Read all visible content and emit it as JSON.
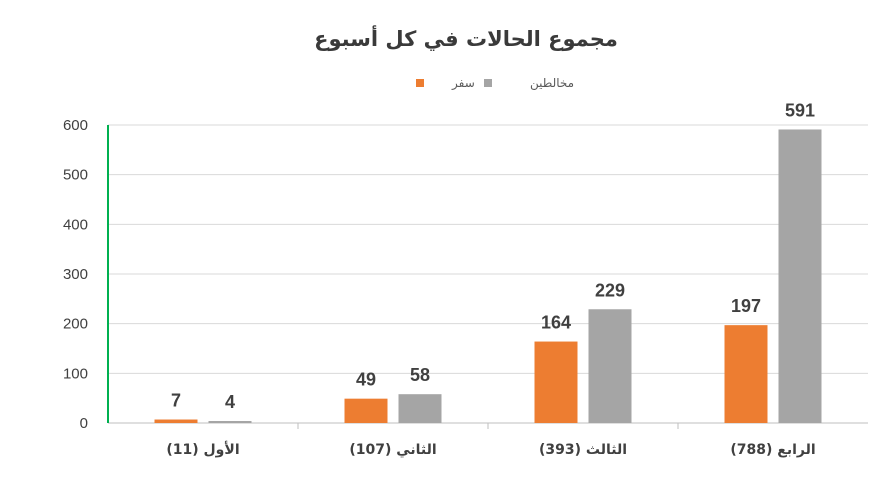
{
  "chart_data": {
    "type": "bar",
    "title": "مجموع الحالات في كل أسبوع",
    "categories": [
      "الأول (11)",
      "الثاني (107)",
      "الثالث (393)",
      "الرابع (788)"
    ],
    "series": [
      {
        "name": "سفر",
        "color": "#ED7D31",
        "values": [
          7,
          49,
          164,
          197
        ]
      },
      {
        "name": "مخالطين",
        "color": "#A5A5A5",
        "values": [
          4,
          58,
          229,
          591
        ]
      }
    ],
    "ylim": [
      0,
      600
    ],
    "yticks": [
      0,
      100,
      200,
      300,
      400,
      500,
      600
    ],
    "grid": true,
    "legend_position": "top-center",
    "axis_color": "#00B050",
    "gridline_color": "#D9D9D9"
  }
}
